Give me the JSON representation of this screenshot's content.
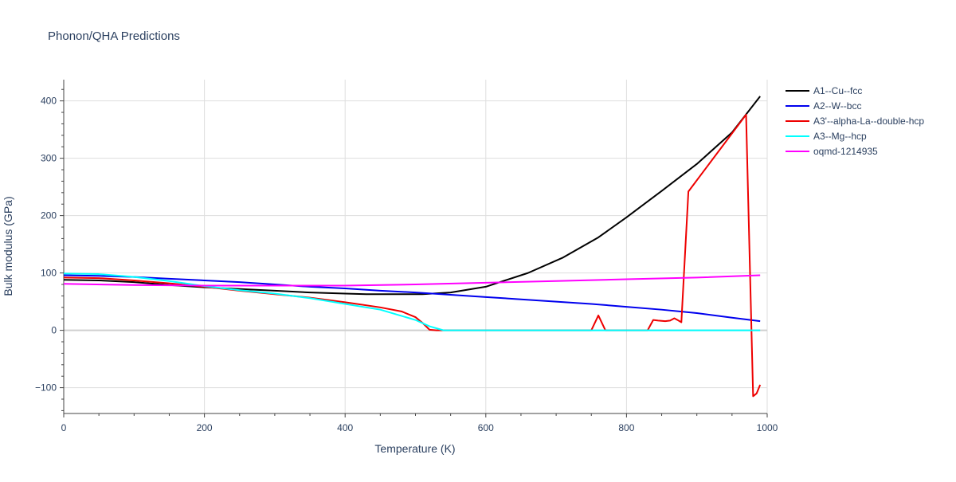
{
  "chart_data": {
    "type": "line",
    "title": "Phonon/QHA Predictions",
    "xlabel": "Temperature (K)",
    "ylabel": "Bulk modulus (GPa)",
    "xlim": [
      0,
      1000
    ],
    "ylim": [
      -145,
      437
    ],
    "x_ticks": [
      0,
      200,
      400,
      600,
      800,
      1000
    ],
    "y_ticks": [
      -100,
      0,
      100,
      200,
      300,
      400
    ],
    "grid": true,
    "legend_position": "right",
    "series": [
      {
        "name": "A1--Cu--fcc",
        "color": "#000000",
        "points": [
          [
            0,
            88
          ],
          [
            50,
            87
          ],
          [
            100,
            84
          ],
          [
            150,
            79
          ],
          [
            200,
            75
          ],
          [
            250,
            72
          ],
          [
            300,
            69
          ],
          [
            350,
            66
          ],
          [
            400,
            64
          ],
          [
            430,
            63
          ],
          [
            470,
            63
          ],
          [
            510,
            63
          ],
          [
            550,
            66
          ],
          [
            600,
            76
          ],
          [
            660,
            100
          ],
          [
            710,
            127
          ],
          [
            760,
            162
          ],
          [
            800,
            197
          ],
          [
            850,
            243
          ],
          [
            900,
            290
          ],
          [
            950,
            345
          ],
          [
            990,
            408
          ]
        ]
      },
      {
        "name": "A2--W--bcc",
        "color": "#0000ee",
        "points": [
          [
            0,
            96
          ],
          [
            50,
            95
          ],
          [
            100,
            93
          ],
          [
            150,
            90
          ],
          [
            200,
            87
          ],
          [
            250,
            84
          ],
          [
            300,
            80
          ],
          [
            350,
            76
          ],
          [
            400,
            73
          ],
          [
            450,
            69
          ],
          [
            500,
            66
          ],
          [
            550,
            62
          ],
          [
            600,
            58
          ],
          [
            650,
            54
          ],
          [
            700,
            50
          ],
          [
            750,
            46
          ],
          [
            800,
            41
          ],
          [
            850,
            36
          ],
          [
            900,
            30
          ],
          [
            950,
            22
          ],
          [
            990,
            16
          ]
        ]
      },
      {
        "name": "A3'--alpha-La--double-hcp",
        "color": "#ee0000",
        "points": [
          [
            0,
            92
          ],
          [
            50,
            91
          ],
          [
            100,
            87
          ],
          [
            150,
            82
          ],
          [
            200,
            76
          ],
          [
            250,
            69
          ],
          [
            300,
            63
          ],
          [
            350,
            57
          ],
          [
            400,
            49
          ],
          [
            450,
            40
          ],
          [
            480,
            33
          ],
          [
            500,
            23
          ],
          [
            510,
            13
          ],
          [
            520,
            1
          ],
          [
            530,
            0
          ],
          [
            600,
            0
          ],
          [
            700,
            0
          ],
          [
            750,
            0
          ],
          [
            760,
            26
          ],
          [
            770,
            0
          ],
          [
            820,
            0
          ],
          [
            830,
            0
          ],
          [
            838,
            18
          ],
          [
            845,
            17
          ],
          [
            855,
            16
          ],
          [
            862,
            17
          ],
          [
            868,
            21
          ],
          [
            874,
            17
          ],
          [
            878,
            14
          ],
          [
            888,
            242
          ],
          [
            970,
            376
          ],
          [
            980,
            -115
          ],
          [
            985,
            -110
          ],
          [
            990,
            -95
          ]
        ]
      },
      {
        "name": "A3--Mg--hcp",
        "color": "#00ffff",
        "points": [
          [
            0,
            99
          ],
          [
            50,
            98
          ],
          [
            100,
            93
          ],
          [
            150,
            86
          ],
          [
            200,
            77
          ],
          [
            250,
            70
          ],
          [
            300,
            64
          ],
          [
            350,
            56
          ],
          [
            400,
            46
          ],
          [
            450,
            36
          ],
          [
            500,
            18
          ],
          [
            520,
            7
          ],
          [
            540,
            0
          ],
          [
            600,
            0
          ],
          [
            700,
            0
          ],
          [
            800,
            0
          ],
          [
            900,
            0
          ],
          [
            990,
            0
          ]
        ]
      },
      {
        "name": "oqmd-1214935",
        "color": "#ff00ff",
        "points": [
          [
            0,
            81
          ],
          [
            100,
            79
          ],
          [
            200,
            78
          ],
          [
            300,
            78
          ],
          [
            400,
            78
          ],
          [
            500,
            80
          ],
          [
            600,
            83
          ],
          [
            700,
            86
          ],
          [
            800,
            89
          ],
          [
            900,
            92
          ],
          [
            990,
            96
          ]
        ]
      }
    ]
  }
}
